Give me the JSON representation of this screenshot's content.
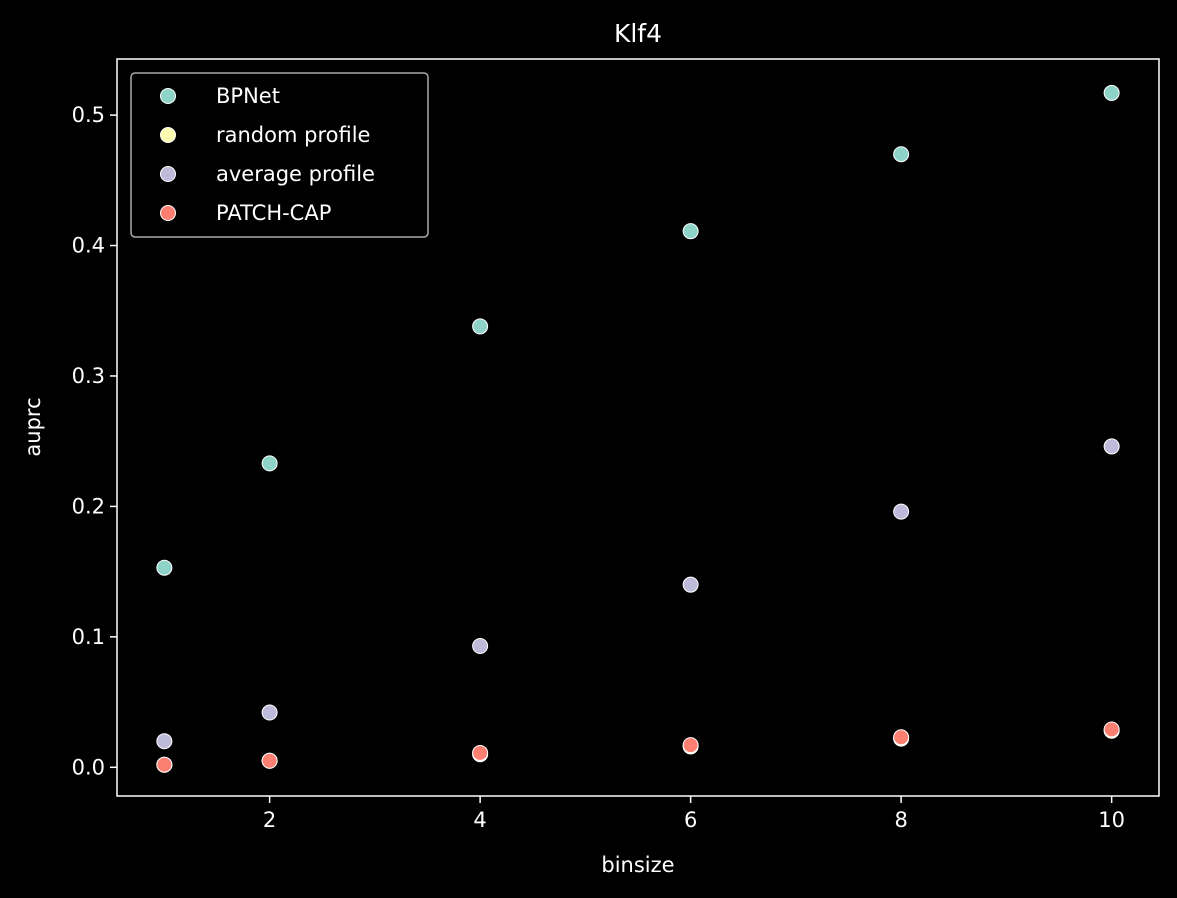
{
  "chart_data": {
    "type": "scatter",
    "title": "Klf4",
    "xlabel": "binsize",
    "ylabel": "auprc",
    "xlim": [
      0.55,
      10.45
    ],
    "ylim": [
      -0.022,
      0.543
    ],
    "xticks": [
      2,
      4,
      6,
      8,
      10
    ],
    "xtick_labels": [
      "2",
      "4",
      "6",
      "8",
      "10"
    ],
    "yticks": [
      0.0,
      0.1,
      0.2,
      0.3,
      0.4,
      0.5
    ],
    "ytick_labels": [
      "0.0",
      "0.1",
      "0.2",
      "0.3",
      "0.4",
      "0.5"
    ],
    "grid": false,
    "legend": "upper-left",
    "x": [
      1,
      2,
      4,
      6,
      8,
      10
    ],
    "series": [
      {
        "name": "BPNet",
        "color": "#8dd3c7",
        "values": [
          0.153,
          0.233,
          0.338,
          0.411,
          0.47,
          0.517
        ]
      },
      {
        "name": "random profile",
        "color": "#ffffb3",
        "values": [
          0.002,
          0.005,
          0.01,
          0.016,
          0.022,
          0.028
        ]
      },
      {
        "name": "average profile",
        "color": "#bebada",
        "values": [
          0.02,
          0.042,
          0.093,
          0.14,
          0.196,
          0.246
        ]
      },
      {
        "name": "PATCH-CAP",
        "color": "#fb8072",
        "values": [
          0.002,
          0.005,
          0.011,
          0.017,
          0.023,
          0.029
        ]
      }
    ]
  }
}
